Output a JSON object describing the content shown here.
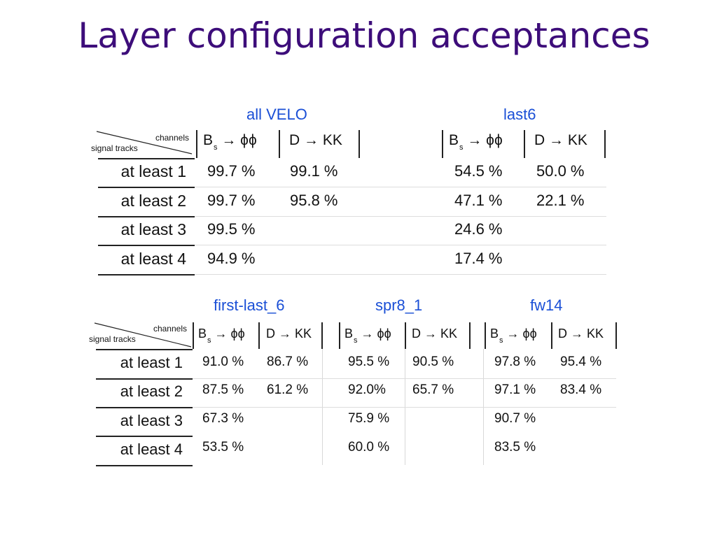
{
  "slide_title": "Layer configuration acceptances",
  "corner": {
    "channels": "channels",
    "signal_tracks": "signal tracks"
  },
  "channels": {
    "bs_main": "B",
    "bs_sub": "s",
    "bs_rest": " → ϕϕ",
    "d": "D → KK"
  },
  "rows": [
    "at least 1",
    "at least 2",
    "at least 3",
    "at least 4"
  ],
  "groups": [
    {
      "title": "all VELO",
      "bs": [
        "99.7 %",
        "99.7 %",
        "99.5 %",
        "94.9 %"
      ],
      "d": [
        "99.1 %",
        "95.8 %",
        "",
        ""
      ]
    },
    {
      "title": "last6",
      "bs": [
        "54.5 %",
        "47.1 %",
        "24.6 %",
        "17.4 %"
      ],
      "d": [
        "50.0 %",
        "22.1 %",
        "",
        ""
      ]
    },
    {
      "title": "first-last_6",
      "bs": [
        "91.0 %",
        "87.5 %",
        "67.3 %",
        "53.5 %"
      ],
      "d": [
        "86.7 %",
        "61.2 %",
        "",
        ""
      ]
    },
    {
      "title": "spr8_1",
      "bs": [
        "95.5 %",
        "92.0%",
        "75.9 %",
        "60.0 %"
      ],
      "d": [
        "90.5 %",
        "65.7 %",
        "",
        ""
      ]
    },
    {
      "title": "fw14",
      "bs": [
        "97.8 %",
        "97.1 %",
        "90.7 %",
        "83.5 %"
      ],
      "d": [
        "95.4 %",
        "83.4 %",
        "",
        ""
      ]
    }
  ]
}
